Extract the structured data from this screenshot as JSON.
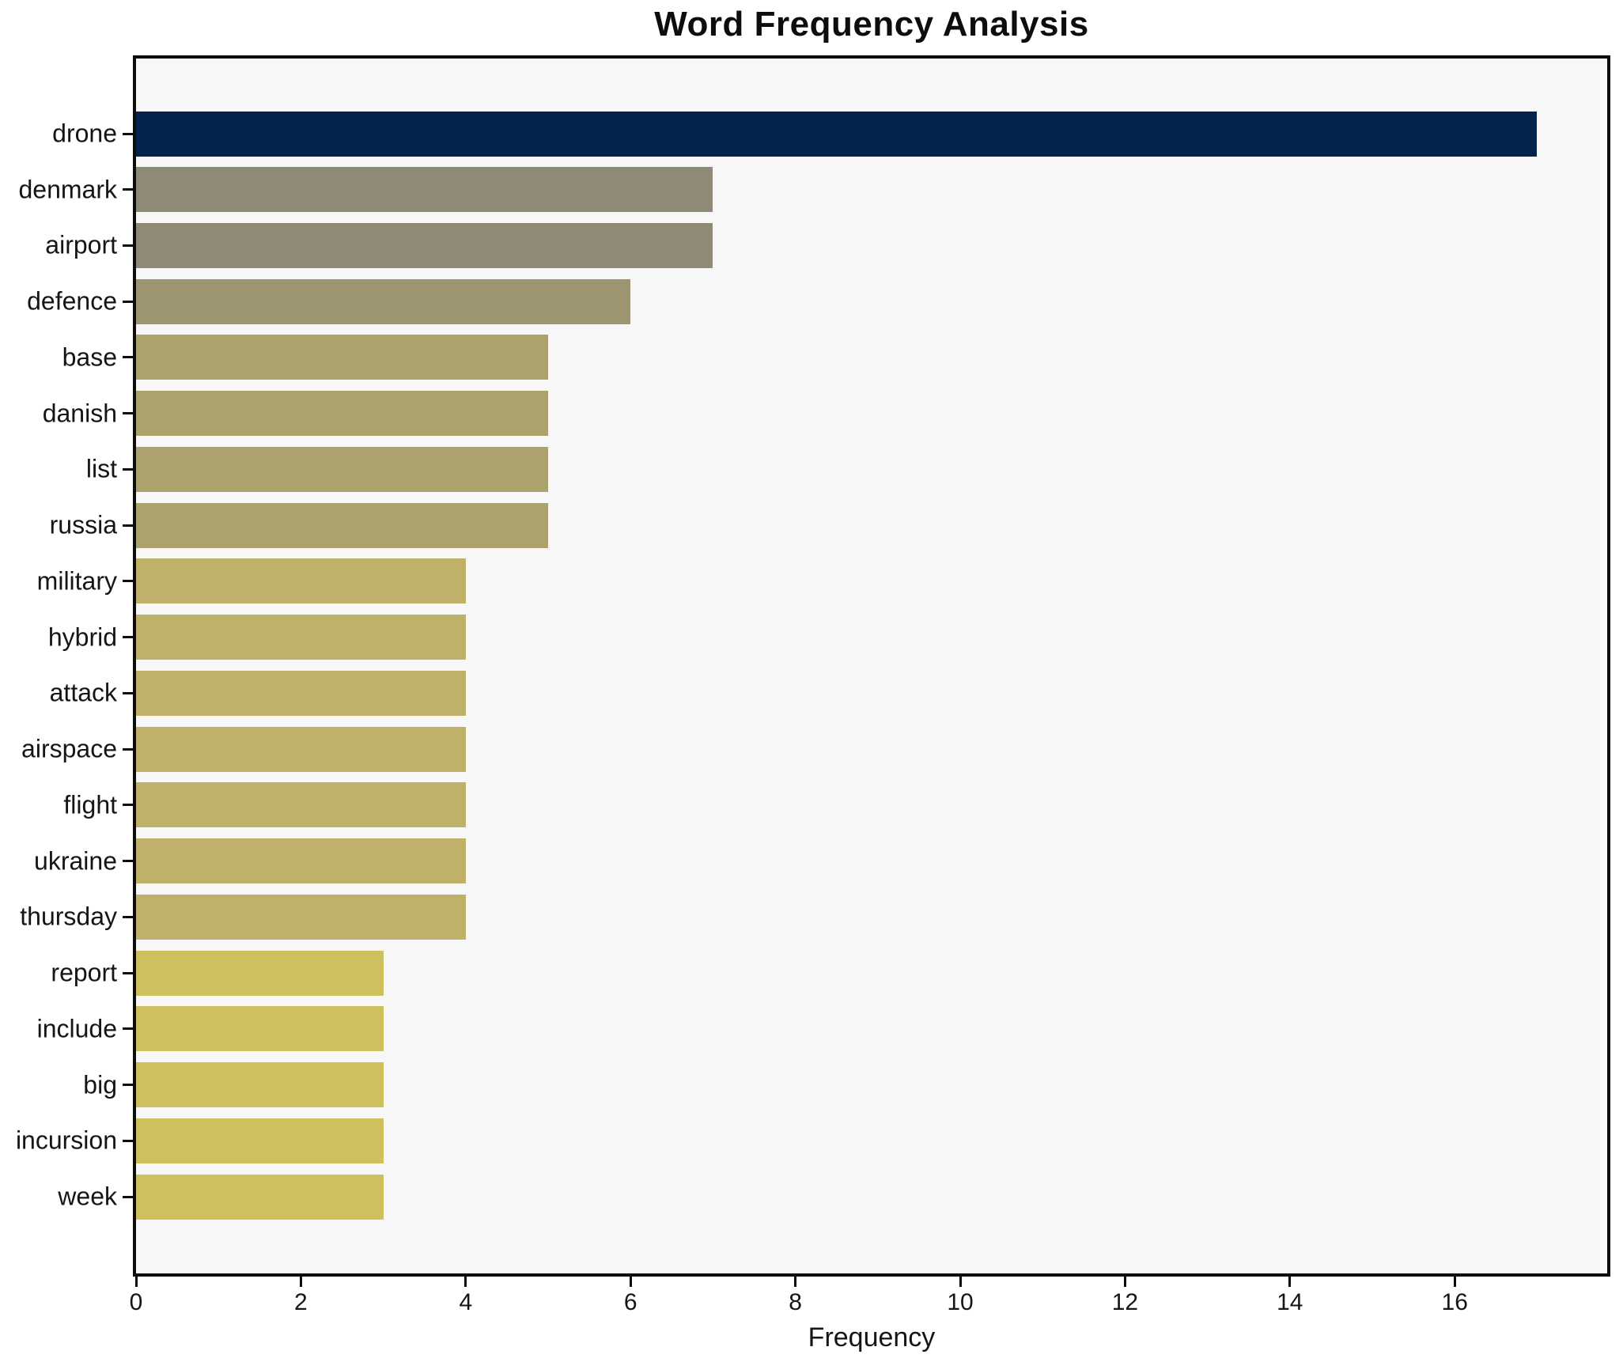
{
  "chart_data": {
    "type": "bar",
    "orientation": "horizontal",
    "title": "Word Frequency Analysis",
    "xlabel": "Frequency",
    "ylabel": "",
    "categories": [
      "drone",
      "denmark",
      "airport",
      "defence",
      "base",
      "danish",
      "list",
      "russia",
      "military",
      "hybrid",
      "attack",
      "airspace",
      "flight",
      "ukraine",
      "thursday",
      "report",
      "include",
      "big",
      "incursion",
      "week"
    ],
    "values": [
      17,
      7,
      7,
      6,
      5,
      5,
      5,
      5,
      4,
      4,
      4,
      4,
      4,
      4,
      4,
      3,
      3,
      3,
      3,
      3
    ],
    "bar_colors": [
      "#03234d",
      "#8f8a77",
      "#8f8a77",
      "#9c9570",
      "#aba26e",
      "#aba26e",
      "#aba26e",
      "#aba26e",
      "#bfb169",
      "#bfb169",
      "#bfb169",
      "#bfb169",
      "#bfb169",
      "#bfb169",
      "#bfb169",
      "#cfc05f",
      "#cfc05f",
      "#cfc05f",
      "#cfc05f",
      "#cfc05f"
    ],
    "xlim": [
      0,
      17.85
    ],
    "xticks": [
      0,
      2,
      4,
      6,
      8,
      10,
      12,
      14,
      16
    ],
    "grid": false,
    "legend_position": "none",
    "colors": {
      "figure_bg": "#ffffff",
      "plot_bg": "#f7f7f8",
      "spine": "#0d0d0d",
      "text": "#151515"
    }
  }
}
